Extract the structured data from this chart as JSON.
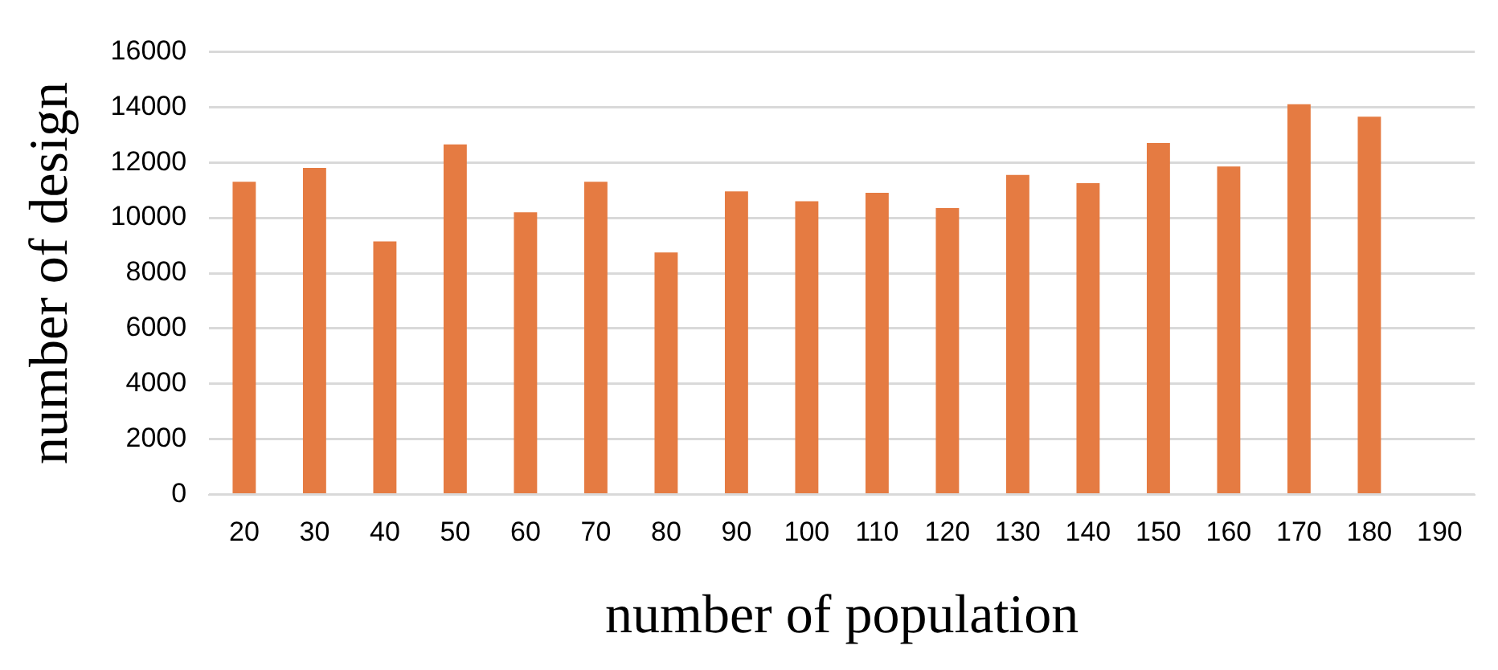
{
  "chart_data": {
    "type": "bar",
    "xlabel": "number of population",
    "ylabel": "number of design",
    "categories": [
      "20",
      "30",
      "40",
      "50",
      "60",
      "70",
      "80",
      "90",
      "100",
      "110",
      "120",
      "130",
      "140",
      "150",
      "160",
      "170",
      "180",
      "190"
    ],
    "series": [
      {
        "color": "#e57b42",
        "values": [
          11300,
          11800,
          9150,
          12650,
          10200,
          11300,
          8750,
          10950,
          10600,
          10900,
          10350,
          11550,
          11250,
          12700,
          11850,
          14100,
          13650,
          null
        ]
      }
    ],
    "ylim": [
      0,
      16000
    ],
    "yticks": [
      0,
      2000,
      4000,
      6000,
      8000,
      10000,
      12000,
      14000,
      16000
    ],
    "grid": "y",
    "legend": false
  }
}
